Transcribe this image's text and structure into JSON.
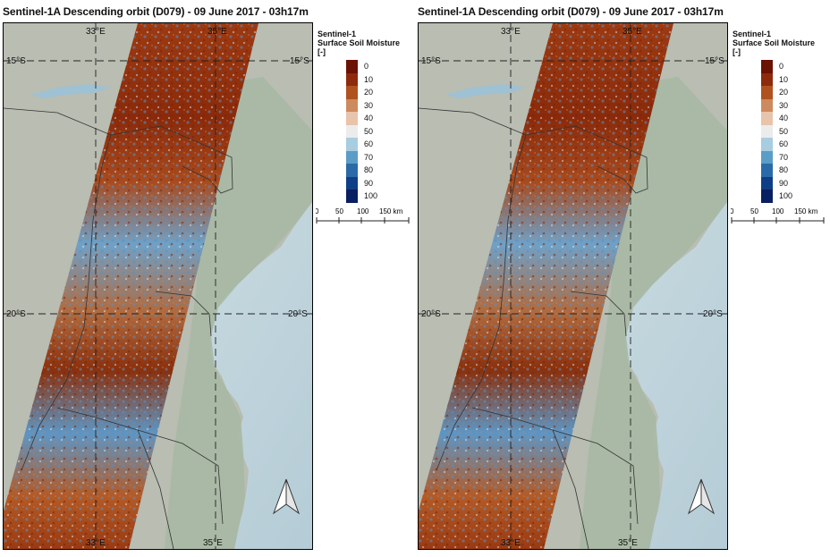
{
  "panels": [
    {
      "title": "Sentinel-1A Descending orbit (D079) - 09 June 2017 - 03h17m",
      "lat_labels": [
        "15°S",
        "15°S",
        "20°S",
        "20°S"
      ],
      "lon_labels": [
        "33°E",
        "35°E",
        "33°E",
        "35°E"
      ],
      "legend": {
        "title_line1": "Sentinel-1",
        "title_line2": "Surface Soil Moisture",
        "title_line3": "[-]",
        "classes": [
          {
            "label": "0",
            "color": "#6b1203"
          },
          {
            "label": "10",
            "color": "#8e2a0c"
          },
          {
            "label": "20",
            "color": "#b0521f"
          },
          {
            "label": "30",
            "color": "#cc8a5e"
          },
          {
            "label": "40",
            "color": "#e8c4ab"
          },
          {
            "label": "50",
            "color": "#ececec"
          },
          {
            "label": "60",
            "color": "#a8cde0"
          },
          {
            "label": "70",
            "color": "#5b9dc6"
          },
          {
            "label": "80",
            "color": "#2a6aa8"
          },
          {
            "label": "90",
            "color": "#0e3f86"
          },
          {
            "label": "100",
            "color": "#081f61"
          }
        ]
      },
      "scale": {
        "ticks": [
          "0",
          "50",
          "100",
          "150 km"
        ]
      }
    },
    {
      "title": "Sentinel-1A Descending orbit (D079) - 09 June 2017 - 03h17m",
      "lat_labels": [
        "15°S",
        "15°S",
        "20°S",
        "20°S"
      ],
      "lon_labels": [
        "33°E",
        "35°E",
        "33°E",
        "35°E"
      ],
      "legend": {
        "title_line1": "Sentinel-1",
        "title_line2": "Surface Soil Moisture",
        "title_line3": "[-]",
        "classes": [
          {
            "label": "0",
            "color": "#6b1203"
          },
          {
            "label": "10",
            "color": "#8e2a0c"
          },
          {
            "label": "20",
            "color": "#b0521f"
          },
          {
            "label": "30",
            "color": "#cc8a5e"
          },
          {
            "label": "40",
            "color": "#e8c4ab"
          },
          {
            "label": "50",
            "color": "#ececec"
          },
          {
            "label": "60",
            "color": "#a8cde0"
          },
          {
            "label": "70",
            "color": "#5b9dc6"
          },
          {
            "label": "80",
            "color": "#2a6aa8"
          },
          {
            "label": "90",
            "color": "#0e3f86"
          },
          {
            "label": "100",
            "color": "#081f61"
          }
        ]
      },
      "scale": {
        "ticks": [
          "0",
          "50",
          "100",
          "150 km"
        ]
      }
    }
  ],
  "colors": {
    "ocean": "#c8d9de",
    "land": "#b7bcb0",
    "land_green": "#a6b8a2",
    "lake": "#9ec1d4",
    "frame": "#000000",
    "grid": "#333333"
  },
  "icons": {
    "north_arrow": "north-arrow-icon"
  }
}
